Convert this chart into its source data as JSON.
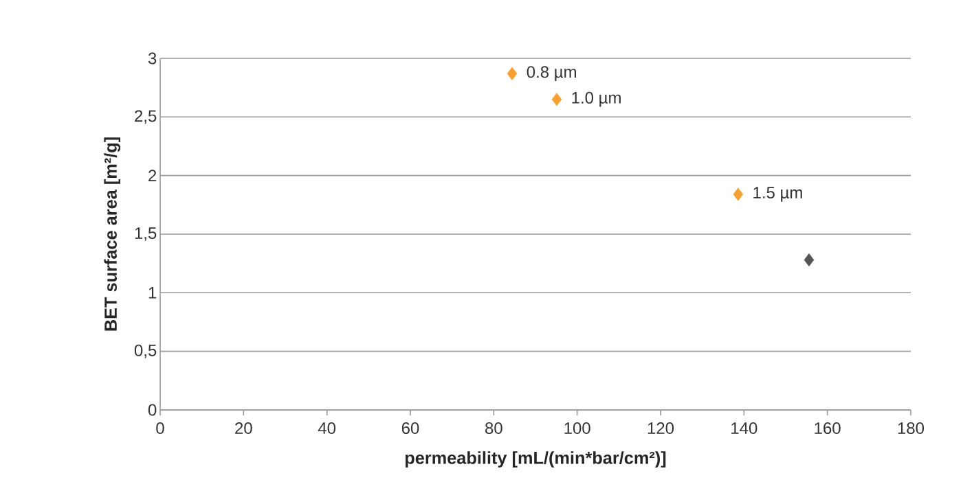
{
  "chart_data": {
    "type": "scatter",
    "xlabel": "permeability [mL/(min*bar/cm²)]",
    "ylabel": "BET surface area [m²/g]",
    "series": [
      {
        "color": "#f5a030",
        "x": [
          84.4,
          95.1,
          138.6
        ],
        "values": [
          2.87,
          2.65,
          1.84
        ]
      },
      {
        "color": "#555555",
        "x": [
          155.6
        ],
        "values": [
          1.28
        ]
      }
    ],
    "xlim": [
      0,
      180
    ],
    "xticks": [
      0,
      20,
      40,
      60,
      80,
      100,
      120,
      140,
      160,
      180
    ],
    "ylim": [
      0,
      3
    ],
    "yticks": [
      0,
      {
        "value": 0.5,
        "label": "0,5"
      },
      1,
      {
        "value": 1.5,
        "label": "1,5"
      },
      2,
      {
        "value": 2.5,
        "label": "2,5"
      },
      3
    ],
    "annotations": [
      {
        "text": "0.8 µm",
        "x": 84.4,
        "y": 2.87
      },
      {
        "text": "1.0 µm",
        "x": 95.1,
        "y": 2.65
      },
      {
        "text": "1.5 µm",
        "x": 138.6,
        "y": 1.84
      }
    ],
    "grid": "y",
    "marker": "diamond"
  }
}
